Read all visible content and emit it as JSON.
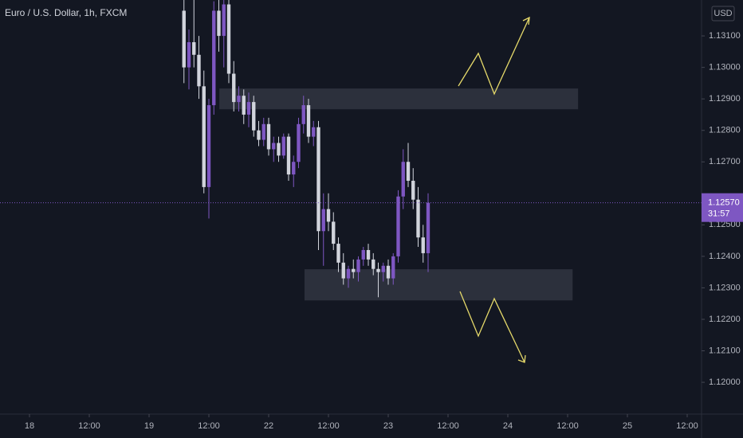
{
  "chart_data": {
    "type": "candlestick",
    "title": "Euro / U.S. Dollar, 1h, FXCM",
    "currency": "USD",
    "x": [
      31,
      32,
      33,
      34,
      35,
      36,
      37,
      38,
      39,
      40,
      41,
      42,
      43,
      44,
      45,
      46,
      47,
      48,
      49,
      50,
      51,
      52,
      53,
      54,
      55,
      56,
      57,
      58,
      59,
      60,
      61,
      62,
      63,
      64,
      65,
      66,
      67,
      68,
      69,
      70,
      71,
      72,
      73,
      74,
      75,
      76,
      77,
      78,
      79,
      80
    ],
    "open": [
      1.1318,
      1.13,
      1.1308,
      1.1304,
      1.1294,
      1.1262,
      1.1288,
      1.1318,
      1.131,
      1.132,
      1.1298,
      1.1289,
      1.1291,
      1.1285,
      1.1289,
      1.128,
      1.1277,
      1.1282,
      1.1274,
      1.1276,
      1.1272,
      1.1278,
      1.1266,
      1.127,
      1.1282,
      1.1288,
      1.1278,
      1.1281,
      1.1248,
      1.1255,
      1.1251,
      1.1244,
      1.1238,
      1.1233,
      1.1236,
      1.1235,
      1.1239,
      1.1242,
      1.1239,
      1.1236,
      1.1235,
      1.1237,
      1.1233,
      1.124,
      1.1259,
      1.127,
      1.1264,
      1.1258,
      1.1246,
      1.1241
    ],
    "high": [
      1.1322,
      1.1312,
      1.1322,
      1.131,
      1.1299,
      1.129,
      1.1321,
      1.1322,
      1.1322,
      1.1322,
      1.1302,
      1.1294,
      1.1293,
      1.1292,
      1.1291,
      1.1283,
      1.1284,
      1.1284,
      1.1278,
      1.1278,
      1.1279,
      1.1279,
      1.1272,
      1.1284,
      1.1291,
      1.129,
      1.1283,
      1.1283,
      1.126,
      1.126,
      1.1254,
      1.1246,
      1.1241,
      1.1237,
      1.1239,
      1.124,
      1.1243,
      1.1244,
      1.1241,
      1.1238,
      1.1238,
      1.1239,
      1.1241,
      1.1261,
      1.1274,
      1.1276,
      1.1268,
      1.1262,
      1.125,
      1.126
    ],
    "low": [
      1.1295,
      1.1293,
      1.13,
      1.129,
      1.126,
      1.1252,
      1.1285,
      1.1305,
      1.13,
      1.1295,
      1.1286,
      1.1286,
      1.1282,
      1.1281,
      1.1278,
      1.1275,
      1.1275,
      1.1272,
      1.127,
      1.127,
      1.1271,
      1.1264,
      1.1262,
      1.1268,
      1.1279,
      1.1276,
      1.1275,
      1.1242,
      1.1237,
      1.1248,
      1.1242,
      1.1235,
      1.1231,
      1.123,
      1.1233,
      1.1232,
      1.1237,
      1.1237,
      1.1234,
      1.1227,
      1.1232,
      1.1231,
      1.1231,
      1.1238,
      1.1255,
      1.1262,
      1.1255,
      1.1243,
      1.1238,
      1.1235
    ],
    "close": [
      1.13,
      1.1308,
      1.1304,
      1.1294,
      1.1262,
      1.1288,
      1.1318,
      1.131,
      1.132,
      1.1298,
      1.1289,
      1.1291,
      1.1285,
      1.1289,
      1.128,
      1.1277,
      1.1282,
      1.1274,
      1.1276,
      1.1272,
      1.1278,
      1.1266,
      1.127,
      1.1282,
      1.1288,
      1.1278,
      1.1281,
      1.1248,
      1.1255,
      1.1251,
      1.1244,
      1.1238,
      1.1233,
      1.1236,
      1.1235,
      1.1239,
      1.1242,
      1.1239,
      1.1236,
      1.1235,
      1.1237,
      1.1233,
      1.124,
      1.1259,
      1.127,
      1.1264,
      1.1258,
      1.1246,
      1.1241,
      1.1257
    ],
    "up_color": "#7e57c2",
    "down_color": "#d1d4dc",
    "last_price": 1.1257,
    "last_price_label": "1.12570",
    "countdown": "31:57",
    "zones": [
      {
        "xlim": [
          38.1,
          110.1
        ],
        "ylim": [
          1.12867,
          1.12933
        ]
      },
      {
        "xlim": [
          55.2,
          109
        ],
        "ylim": [
          1.1226,
          1.12359
        ]
      }
    ],
    "xlim": [
      -5.92,
      134.88
    ],
    "ylim": [
      1.11899,
      1.13214
    ],
    "xticks": [
      {
        "value": 0,
        "label": "18"
      },
      {
        "value": 12,
        "label": "12:00"
      },
      {
        "value": 24,
        "label": "19"
      },
      {
        "value": 36,
        "label": "12:00"
      },
      {
        "value": 48,
        "label": "22"
      },
      {
        "value": 60,
        "label": "12:00"
      },
      {
        "value": 72,
        "label": "23"
      },
      {
        "value": 84,
        "label": "12:00"
      },
      {
        "value": 96,
        "label": "24"
      },
      {
        "value": 108,
        "label": "12:00"
      },
      {
        "value": 120,
        "label": "25"
      },
      {
        "value": 132,
        "label": "12:00"
      }
    ],
    "yticks": [
      {
        "value": 1.12,
        "label": "1.12000"
      },
      {
        "value": 1.121,
        "label": "1.12100"
      },
      {
        "value": 1.122,
        "label": "1.12200"
      },
      {
        "value": 1.123,
        "label": "1.12300"
      },
      {
        "value": 1.124,
        "label": "1.12400"
      },
      {
        "value": 1.125,
        "label": "1.12500"
      },
      {
        "value": 1.127,
        "label": "1.12700"
      },
      {
        "value": 1.128,
        "label": "1.12800"
      },
      {
        "value": 1.129,
        "label": "1.12900"
      },
      {
        "value": 1.13,
        "label": "1.13000"
      },
      {
        "value": 1.131,
        "label": "1.13100"
      }
    ]
  }
}
